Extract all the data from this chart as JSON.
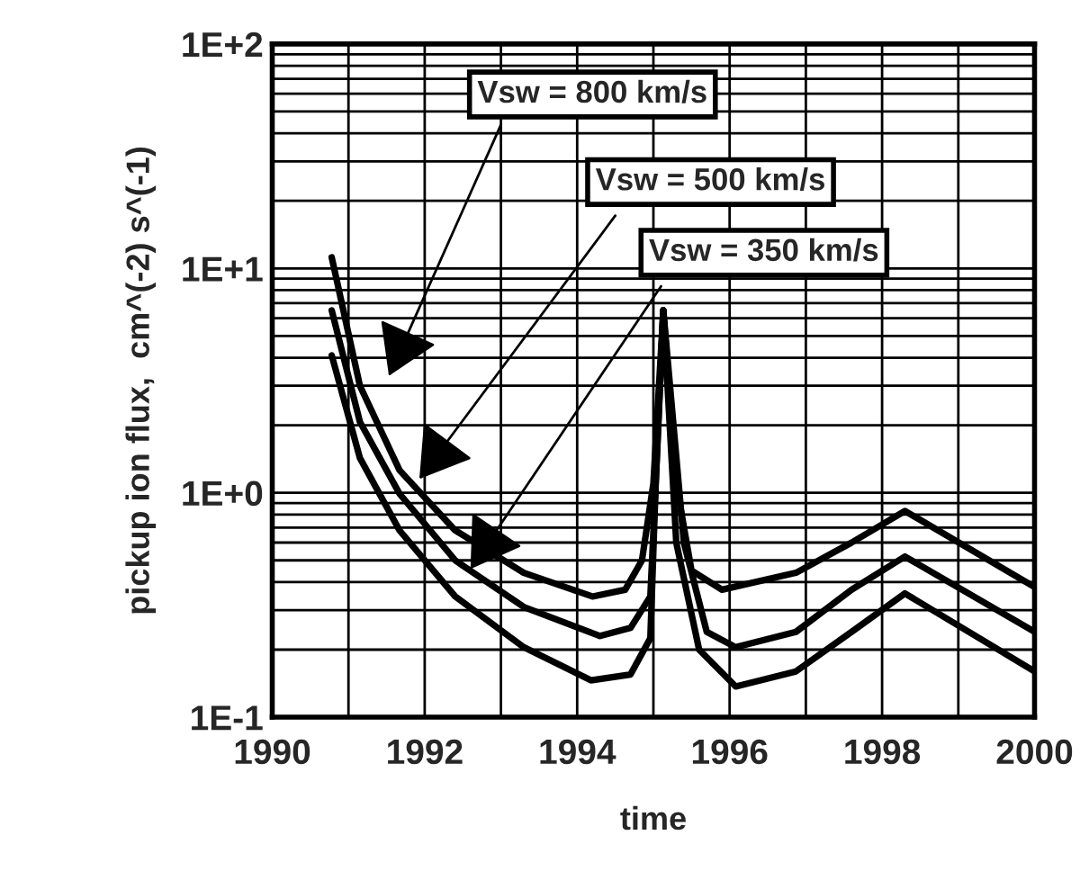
{
  "chart_data": {
    "type": "line",
    "xlabel": "time",
    "ylabel": "pickup ion flux,  cm^(-2) s^(-1)",
    "log": "y",
    "grid": true,
    "line_style": "solid",
    "marker": "none",
    "xlim": [
      1990,
      2000
    ],
    "xticks": [
      1990,
      1992,
      1994,
      1996,
      1998,
      2000
    ],
    "ylim": [
      0.1,
      100
    ],
    "yticks": [
      {
        "value": 0.1,
        "label": "1E-1"
      },
      {
        "value": 0.2,
        "label": null
      },
      {
        "value": 0.3,
        "label": null
      },
      {
        "value": 0.4,
        "label": null
      },
      {
        "value": 0.5,
        "label": null
      },
      {
        "value": 0.6,
        "label": null
      },
      {
        "value": 0.7,
        "label": null
      },
      {
        "value": 0.8,
        "label": null
      },
      {
        "value": 0.9,
        "label": null
      },
      {
        "value": 1,
        "label": "1E+0"
      },
      {
        "value": 2,
        "label": null
      },
      {
        "value": 3,
        "label": null
      },
      {
        "value": 4,
        "label": null
      },
      {
        "value": 5,
        "label": null
      },
      {
        "value": 6,
        "label": null
      },
      {
        "value": 7,
        "label": null
      },
      {
        "value": 8,
        "label": null
      },
      {
        "value": 9,
        "label": null
      },
      {
        "value": 10,
        "label": "1E+1"
      },
      {
        "value": 20,
        "label": null
      },
      {
        "value": 30,
        "label": null
      },
      {
        "value": 40,
        "label": null
      },
      {
        "value": 50,
        "label": null
      },
      {
        "value": 60,
        "label": null
      },
      {
        "value": 70,
        "label": null
      },
      {
        "value": 80,
        "label": null
      },
      {
        "value": 90,
        "label": null
      },
      {
        "value": 100,
        "label": "1E+2"
      }
    ],
    "series": [
      {
        "color": "#000000",
        "x": [
          1990.78,
          1991.15,
          1991.67,
          1992.4,
          1993.3,
          1994.2,
          1994.63,
          1994.85,
          1995.0,
          1995.13,
          1995.3,
          1995.5,
          1995.9,
          1996.87,
          1997.6,
          1998.3,
          2000
        ],
        "values": [
          11.2,
          3.0,
          1.26,
          0.68,
          0.44,
          0.345,
          0.37,
          0.5,
          1.1,
          6.5,
          1.1,
          0.45,
          0.37,
          0.44,
          0.6,
          0.83,
          0.38
        ]
      },
      {
        "color": "#000000",
        "x": [
          1990.78,
          1991.15,
          1991.67,
          1992.4,
          1993.3,
          1994.3,
          1994.7,
          1994.96,
          1995.03,
          1995.13,
          1995.4,
          1995.7,
          1996.08,
          1996.87,
          1997.6,
          1998.3,
          2000
        ],
        "values": [
          6.5,
          2.07,
          0.99,
          0.5,
          0.31,
          0.23,
          0.25,
          0.345,
          1.1,
          6.5,
          0.6,
          0.24,
          0.205,
          0.24,
          0.37,
          0.52,
          0.24
        ]
      },
      {
        "color": "#000000",
        "x": [
          1990.78,
          1991.15,
          1991.67,
          1992.4,
          1993.3,
          1994.18,
          1994.7,
          1994.96,
          1995.03,
          1995.13,
          1995.3,
          1995.6,
          1996.08,
          1996.87,
          1997.6,
          1998.3,
          2000
        ],
        "values": [
          4.1,
          1.43,
          0.68,
          0.345,
          0.205,
          0.146,
          0.155,
          0.225,
          1.1,
          6.5,
          0.6,
          0.2,
          0.137,
          0.16,
          0.24,
          0.356,
          0.16
        ]
      }
    ],
    "annotations": [
      "Vsw = 800 km/s",
      "Vsw = 500 km/s",
      "Vsw = 350 km/s"
    ]
  }
}
